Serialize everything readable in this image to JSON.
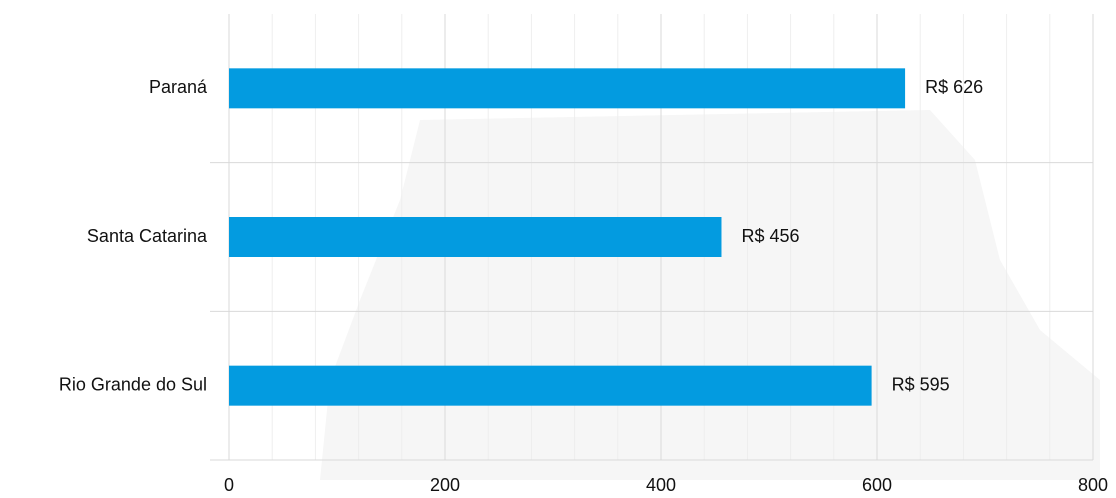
{
  "chart_data": {
    "type": "barh",
    "categories": [
      "Paraná",
      "Santa Catarina",
      "Rio Grande do Sul"
    ],
    "values": [
      626,
      456,
      595
    ],
    "value_labels": [
      "R$ 626",
      "R$ 456",
      "R$ 595"
    ],
    "color": "#039be0",
    "xlim": [
      0,
      800
    ],
    "xticks": [
      0,
      200,
      400,
      600,
      800
    ],
    "xminor_ticks": [
      40,
      80,
      120,
      160,
      240,
      280,
      320,
      360,
      440,
      480,
      520,
      560,
      640,
      680,
      720,
      760
    ],
    "grid": true
  }
}
